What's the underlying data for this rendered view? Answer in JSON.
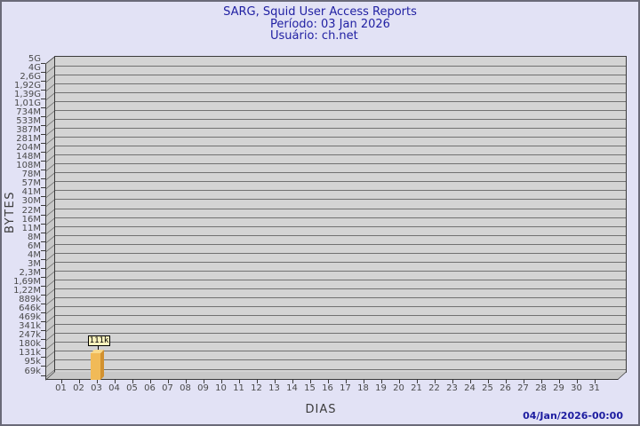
{
  "chart_data": {
    "type": "bar",
    "title": "SARG, Squid User Access Reports",
    "subtitle_period": "Período: 03 Jan 2026",
    "subtitle_user": "Usuário: ch.net",
    "xlabel": "DIAS",
    "ylabel": "BYTES",
    "y_scale": "logarithmic",
    "y_ticks": [
      "5G",
      "4G",
      "2,6G",
      "1,92G",
      "1,39G",
      "1,01G",
      "734M",
      "533M",
      "387M",
      "281M",
      "204M",
      "148M",
      "108M",
      "78M",
      "57M",
      "41M",
      "30M",
      "22M",
      "16M",
      "11M",
      "8M",
      "6M",
      "4M",
      "3M",
      "2,3M",
      "1,69M",
      "1,22M",
      "889k",
      "646k",
      "469k",
      "341k",
      "247k",
      "180k",
      "131k",
      "95k",
      "69k"
    ],
    "x_ticks": [
      "01",
      "02",
      "03",
      "04",
      "05",
      "06",
      "07",
      "08",
      "09",
      "10",
      "11",
      "12",
      "13",
      "14",
      "15",
      "16",
      "17",
      "18",
      "19",
      "20",
      "21",
      "22",
      "23",
      "24",
      "25",
      "26",
      "27",
      "28",
      "29",
      "30",
      "31"
    ],
    "bars": [
      {
        "day": "03",
        "value_label": "111k"
      }
    ],
    "timestamp": "04/Jan/2026-00:00",
    "legend": "none",
    "grid": "horizontal",
    "colors": {
      "page_bg": "#e2e2f5",
      "plot_bg": "#d4d4d4",
      "wall_bg": "#c8c8c8",
      "grid_line": "#717171",
      "axis_line": "#3a3a3a",
      "title_text": "#2121a3",
      "tick_text": "#4a4a4a",
      "bar_front": "#f1ba57",
      "bar_side": "#d2912f",
      "bar_top": "#f9d98b",
      "bar_value_bg": "#faf3bd"
    }
  }
}
